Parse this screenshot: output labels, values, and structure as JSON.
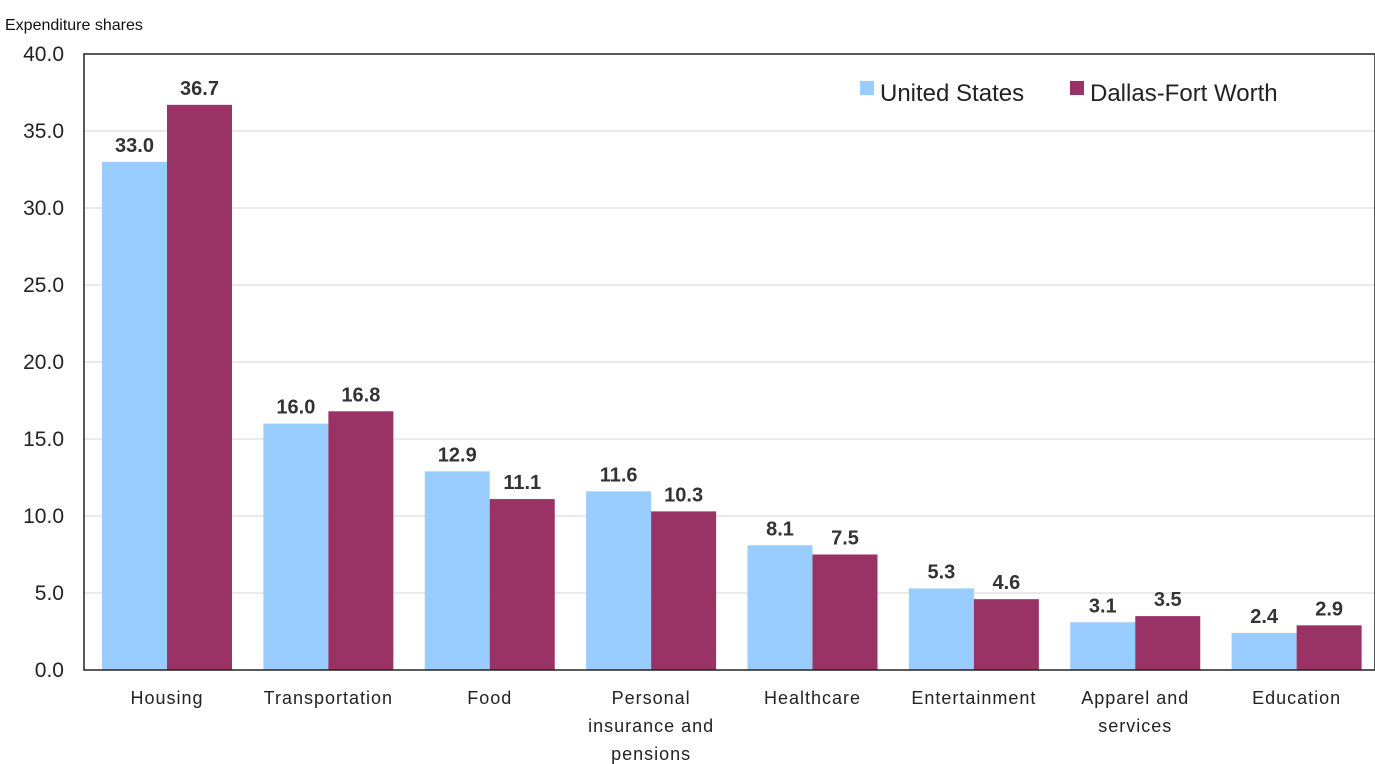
{
  "chart_data": {
    "type": "bar",
    "ylabel": "Expenditure shares",
    "xlabel": "",
    "ylim": [
      0,
      40
    ],
    "y_ticks": [
      "0.0",
      "5.0",
      "10.0",
      "15.0",
      "20.0",
      "25.0",
      "30.0",
      "35.0",
      "40.0"
    ],
    "grid": true,
    "legend_position": "top-right",
    "categories": [
      [
        "Housing"
      ],
      [
        "Transportation"
      ],
      [
        "Food"
      ],
      [
        "Personal",
        "insurance and",
        "pensions"
      ],
      [
        "Healthcare"
      ],
      [
        "Entertainment"
      ],
      [
        "Apparel and",
        "services"
      ],
      [
        "Education"
      ]
    ],
    "series": [
      {
        "name": "United States",
        "color": "#99ccff",
        "values": [
          33.0,
          16.0,
          12.9,
          11.6,
          8.1,
          5.3,
          3.1,
          2.4
        ],
        "labels": [
          "33.0",
          "16.0",
          "12.9",
          "11.6",
          "8.1",
          "5.3",
          "3.1",
          "2.4"
        ]
      },
      {
        "name": "Dallas-Fort Worth",
        "color": "#993366",
        "values": [
          36.7,
          16.8,
          11.1,
          10.3,
          7.5,
          4.6,
          3.5,
          2.9
        ],
        "labels": [
          "36.7",
          "16.8",
          "11.1",
          "10.3",
          "7.5",
          "4.6",
          "3.5",
          "2.9"
        ]
      }
    ]
  }
}
